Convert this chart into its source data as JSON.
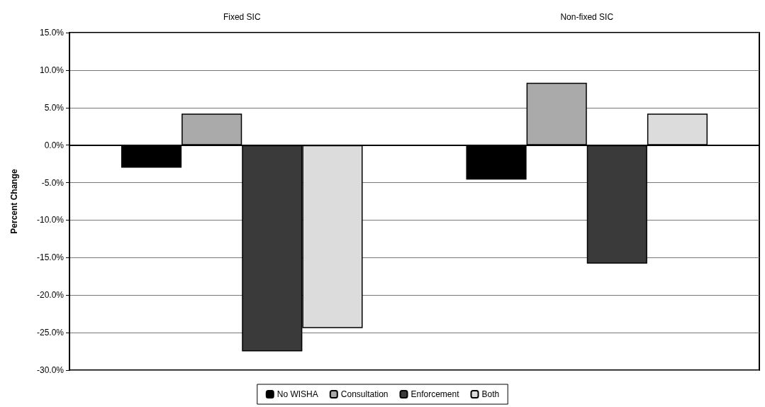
{
  "chart_data": {
    "type": "bar",
    "ylabel": "Percent Change",
    "categories": [
      "Fixed SIC",
      "Non-fixed SIC"
    ],
    "series": [
      {
        "name": "No WISHA",
        "color": "#000000",
        "values": [
          -3.0,
          -4.6
        ]
      },
      {
        "name": "Consultation",
        "color": "#aaaaaa",
        "values": [
          4.2,
          8.3
        ]
      },
      {
        "name": "Enforcement",
        "color": "#3a3a3a",
        "values": [
          -27.5,
          -15.8
        ]
      },
      {
        "name": "Both",
        "color": "#dcdcdc",
        "values": [
          -24.4,
          4.2
        ]
      }
    ],
    "ylim": [
      -30,
      15
    ],
    "yticks": [
      {
        "value": -30,
        "label": "-30.0%"
      },
      {
        "value": -25,
        "label": "-25.0%"
      },
      {
        "value": -20,
        "label": "-20.0%"
      },
      {
        "value": -15,
        "label": "-15.0%"
      },
      {
        "value": -10,
        "label": "-10.0%"
      },
      {
        "value": -5,
        "label": "-5.0%"
      },
      {
        "value": 0,
        "label": "0.0%"
      },
      {
        "value": 5,
        "label": "5.0%"
      },
      {
        "value": 10,
        "label": "10.0%"
      },
      {
        "value": 15,
        "label": "15.0%"
      }
    ],
    "grid": "y",
    "legend": "bottom"
  }
}
